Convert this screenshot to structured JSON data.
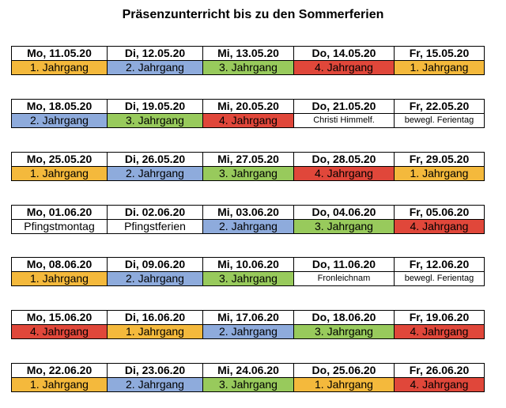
{
  "title": "Präsenzunterricht bis zu den Sommerferien",
  "colors": {
    "y1": "#f4b93c",
    "y2": "#8eabdc",
    "y3": "#98ca5c",
    "y4": "#e0473a",
    "none": "#ffffff"
  },
  "weeks": [
    {
      "days": [
        {
          "date": "Mo, 11.05.20",
          "label": "1. Jahrgang",
          "color": "y1",
          "small": false
        },
        {
          "date": "Di, 12.05.20",
          "label": "2. Jahrgang",
          "color": "y2",
          "small": false
        },
        {
          "date": "Mi, 13.05.20",
          "label": "3. Jahrgang",
          "color": "y3",
          "small": false
        },
        {
          "date": "Do, 14.05.20",
          "label": "4. Jahrgang",
          "color": "y4",
          "small": false
        },
        {
          "date": "Fr, 15.05.20",
          "label": "1. Jahrgang",
          "color": "y1",
          "small": false
        }
      ]
    },
    {
      "days": [
        {
          "date": "Mo, 18.05.20",
          "label": "2. Jahrgang",
          "color": "y2",
          "small": false
        },
        {
          "date": "Di, 19.05.20",
          "label": "3. Jahrgang",
          "color": "y3",
          "small": false
        },
        {
          "date": "Mi, 20.05.20",
          "label": "4. Jahrgang",
          "color": "y4",
          "small": false
        },
        {
          "date": "Do, 21.05.20",
          "label": "Christi Himmelf.",
          "color": "none",
          "small": true
        },
        {
          "date": "Fr, 22.05.20",
          "label": "bewegl. Ferientag",
          "color": "none",
          "small": true
        }
      ]
    },
    {
      "days": [
        {
          "date": "Mo, 25.05.20",
          "label": "1. Jahrgang",
          "color": "y1",
          "small": false
        },
        {
          "date": "Di, 26.05.20",
          "label": "2. Jahrgang",
          "color": "y2",
          "small": false
        },
        {
          "date": "Mi, 27.05.20",
          "label": "3. Jahrgang",
          "color": "y3",
          "small": false
        },
        {
          "date": "Do, 28.05.20",
          "label": "4. Jahrgang",
          "color": "y4",
          "small": false
        },
        {
          "date": "Fr, 29.05.20",
          "label": "1. Jahrgang",
          "color": "y1",
          "small": false
        }
      ]
    },
    {
      "days": [
        {
          "date": "Mo, 01.06.20",
          "label": "Pfingstmontag",
          "color": "none",
          "small": false
        },
        {
          "date": "Di. 02.06.20",
          "label": "Pfingstferien",
          "color": "none",
          "small": false
        },
        {
          "date": "Mi, 03.06.20",
          "label": "2. Jahrgang",
          "color": "y2",
          "small": false
        },
        {
          "date": "Do, 04.06.20",
          "label": "3. Jahrgang",
          "color": "y3",
          "small": false
        },
        {
          "date": "Fr, 05.06.20",
          "label": "4. Jahrgang",
          "color": "y4",
          "small": false
        }
      ]
    },
    {
      "days": [
        {
          "date": "Mo, 08.06.20",
          "label": "1. Jahrgang",
          "color": "y1",
          "small": false
        },
        {
          "date": "Di, 09.06.20",
          "label": "2. Jahrgang",
          "color": "y2",
          "small": false
        },
        {
          "date": "Mi, 10.06.20",
          "label": "3. Jahrgang",
          "color": "y3",
          "small": false
        },
        {
          "date": "Do, 11.06.20",
          "label": "Fronleichnam",
          "color": "none",
          "small": true
        },
        {
          "date": "Fr, 12.06.20",
          "label": "bewegl. Ferientag",
          "color": "none",
          "small": true
        }
      ]
    },
    {
      "days": [
        {
          "date": "Mo, 15.06.20",
          "label": "4. Jahrgang",
          "color": "y4",
          "small": false
        },
        {
          "date": "Di, 16.06.20",
          "label": "1. Jahrgang",
          "color": "y1",
          "small": false
        },
        {
          "date": "Mi, 17.06.20",
          "label": "2. Jahrgang",
          "color": "y2",
          "small": false
        },
        {
          "date": "Do, 18.06.20",
          "label": "3. Jahrgang",
          "color": "y3",
          "small": false
        },
        {
          "date": "Fr, 19.06.20",
          "label": "4. Jahrgang",
          "color": "y4",
          "small": false
        }
      ]
    },
    {
      "days": [
        {
          "date": "Mo, 22.06.20",
          "label": "1. Jahrgang",
          "color": "y1",
          "small": false
        },
        {
          "date": "Di, 23.06.20",
          "label": "2. Jahrgang",
          "color": "y2",
          "small": false
        },
        {
          "date": "Mi, 24.06.20",
          "label": "3. Jahrgang",
          "color": "y3",
          "small": false
        },
        {
          "date": "Do, 25.06.20",
          "label": "1. Jahrgang",
          "color": "y1",
          "small": false
        },
        {
          "date": "Fr, 26.06.20",
          "label": "4. Jahrgang",
          "color": "y4",
          "small": false
        }
      ]
    }
  ]
}
